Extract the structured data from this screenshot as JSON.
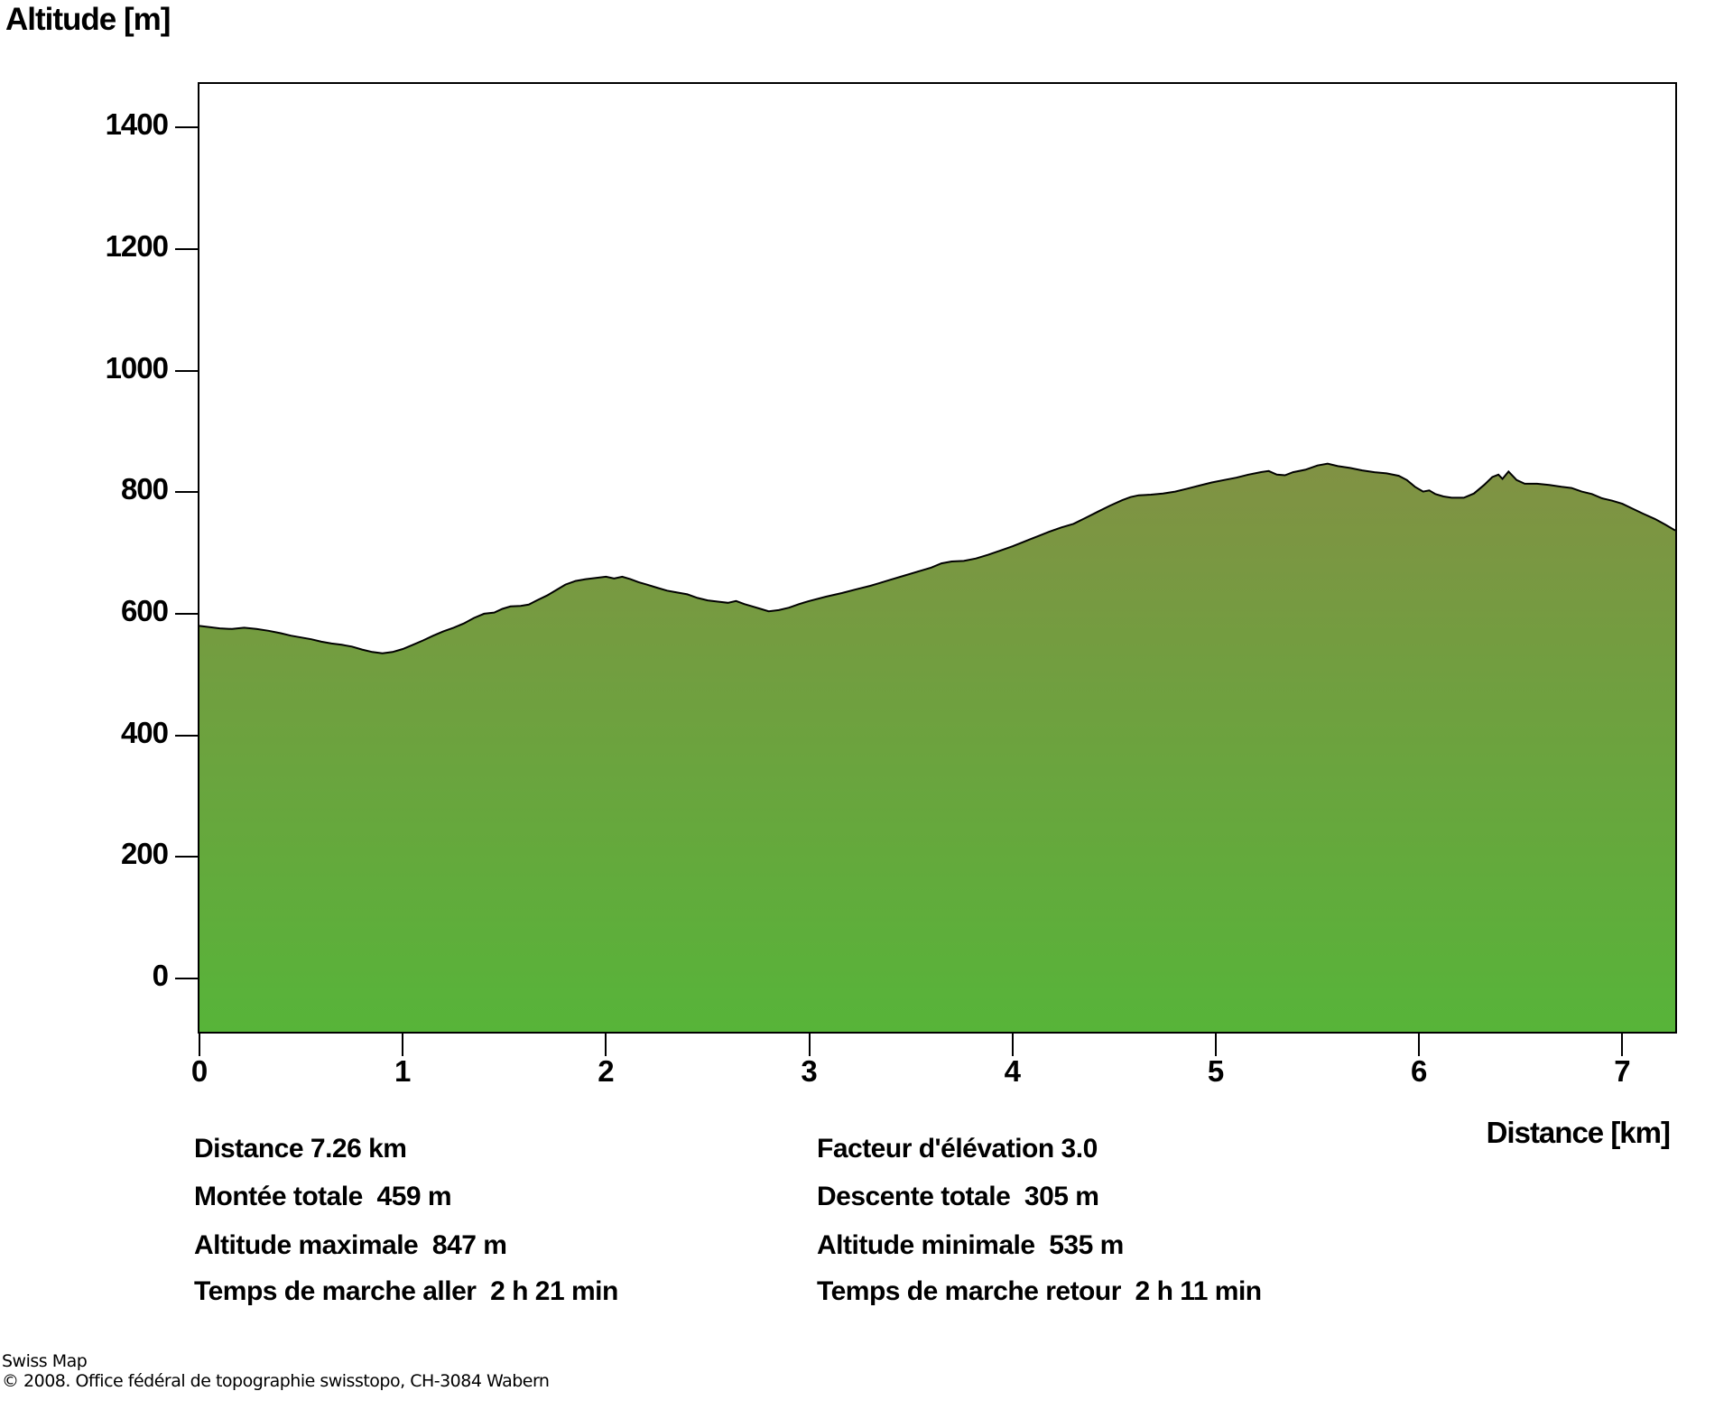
{
  "figure": {
    "title": "Altitude [m]",
    "x_axis_label": "Distance [km]",
    "footer_line1": "Swiss Map",
    "footer_line2": "© 2008. Office fédéral de topographie swisstopo, CH-3084 Wabern"
  },
  "stats": {
    "rows": [
      {
        "left": "Distance 7.26 km",
        "right": "Facteur d'élévation 3.0"
      },
      {
        "left": "Montée totale  459 m",
        "right": "Descente totale  305 m"
      },
      {
        "left": "Altitude maximale  847 m",
        "right": "Altitude minimale  535 m"
      },
      {
        "left": "Temps de marche aller  2 h 21 min",
        "right": "Temps de marche retour  2 h 11 min"
      }
    ]
  },
  "chart_data": {
    "type": "area",
    "title": "Altitude [m]",
    "xlabel": "Distance [km]",
    "ylabel": "Altitude [m]",
    "x_ticks": [
      0,
      1,
      2,
      3,
      4,
      5,
      6,
      7
    ],
    "y_ticks": [
      0,
      200,
      400,
      600,
      800,
      1000,
      1200,
      1400
    ],
    "xlim": [
      0,
      7.26
    ],
    "ylim_drawn": [
      -88,
      1472
    ],
    "grid": "off",
    "legend": "none",
    "start_altitude_m": 580,
    "end_altitude_m": 737,
    "min_altitude_m": 535,
    "max_altitude_m": 847,
    "line_color": "#000000",
    "fill_gradient": {
      "top": "#8a8a46",
      "bottom": "#57b439"
    },
    "points": [
      [
        0.0,
        580
      ],
      [
        0.05,
        578
      ],
      [
        0.1,
        576
      ],
      [
        0.16,
        575
      ],
      [
        0.22,
        577
      ],
      [
        0.28,
        575
      ],
      [
        0.34,
        572
      ],
      [
        0.4,
        568
      ],
      [
        0.45,
        564
      ],
      [
        0.5,
        561
      ],
      [
        0.55,
        558
      ],
      [
        0.6,
        554
      ],
      [
        0.65,
        551
      ],
      [
        0.7,
        549
      ],
      [
        0.75,
        546
      ],
      [
        0.8,
        541
      ],
      [
        0.85,
        537
      ],
      [
        0.9,
        535
      ],
      [
        0.95,
        537
      ],
      [
        1.0,
        542
      ],
      [
        1.05,
        549
      ],
      [
        1.1,
        556
      ],
      [
        1.15,
        564
      ],
      [
        1.2,
        571
      ],
      [
        1.25,
        577
      ],
      [
        1.3,
        584
      ],
      [
        1.35,
        593
      ],
      [
        1.4,
        600
      ],
      [
        1.45,
        602
      ],
      [
        1.49,
        608
      ],
      [
        1.53,
        612
      ],
      [
        1.58,
        613
      ],
      [
        1.62,
        615
      ],
      [
        1.66,
        622
      ],
      [
        1.71,
        630
      ],
      [
        1.76,
        640
      ],
      [
        1.8,
        648
      ],
      [
        1.85,
        654
      ],
      [
        1.9,
        657
      ],
      [
        1.95,
        659
      ],
      [
        2.0,
        661
      ],
      [
        2.04,
        658
      ],
      [
        2.08,
        661
      ],
      [
        2.12,
        657
      ],
      [
        2.16,
        652
      ],
      [
        2.2,
        648
      ],
      [
        2.25,
        643
      ],
      [
        2.3,
        638
      ],
      [
        2.35,
        635
      ],
      [
        2.4,
        632
      ],
      [
        2.45,
        626
      ],
      [
        2.5,
        622
      ],
      [
        2.55,
        620
      ],
      [
        2.6,
        618
      ],
      [
        2.64,
        621
      ],
      [
        2.68,
        616
      ],
      [
        2.72,
        612
      ],
      [
        2.76,
        608
      ],
      [
        2.8,
        604
      ],
      [
        2.85,
        606
      ],
      [
        2.9,
        610
      ],
      [
        2.95,
        616
      ],
      [
        3.0,
        621
      ],
      [
        3.08,
        628
      ],
      [
        3.16,
        634
      ],
      [
        3.24,
        641
      ],
      [
        3.3,
        646
      ],
      [
        3.34,
        650
      ],
      [
        3.4,
        656
      ],
      [
        3.47,
        663
      ],
      [
        3.54,
        670
      ],
      [
        3.6,
        676
      ],
      [
        3.65,
        683
      ],
      [
        3.7,
        686
      ],
      [
        3.76,
        687
      ],
      [
        3.82,
        691
      ],
      [
        3.88,
        697
      ],
      [
        3.94,
        704
      ],
      [
        4.0,
        711
      ],
      [
        4.06,
        719
      ],
      [
        4.12,
        727
      ],
      [
        4.18,
        735
      ],
      [
        4.24,
        742
      ],
      [
        4.3,
        748
      ],
      [
        4.36,
        758
      ],
      [
        4.42,
        768
      ],
      [
        4.48,
        778
      ],
      [
        4.54,
        787
      ],
      [
        4.58,
        792
      ],
      [
        4.62,
        795
      ],
      [
        4.68,
        796
      ],
      [
        4.74,
        798
      ],
      [
        4.8,
        801
      ],
      [
        4.86,
        806
      ],
      [
        4.92,
        811
      ],
      [
        4.98,
        816
      ],
      [
        5.04,
        820
      ],
      [
        5.1,
        824
      ],
      [
        5.16,
        829
      ],
      [
        5.22,
        833
      ],
      [
        5.26,
        835
      ],
      [
        5.3,
        829
      ],
      [
        5.34,
        828
      ],
      [
        5.38,
        833
      ],
      [
        5.44,
        837
      ],
      [
        5.5,
        844
      ],
      [
        5.55,
        847
      ],
      [
        5.6,
        843
      ],
      [
        5.66,
        840
      ],
      [
        5.72,
        836
      ],
      [
        5.78,
        833
      ],
      [
        5.84,
        831
      ],
      [
        5.9,
        827
      ],
      [
        5.94,
        820
      ],
      [
        5.98,
        809
      ],
      [
        6.02,
        801
      ],
      [
        6.05,
        803
      ],
      [
        6.08,
        797
      ],
      [
        6.12,
        793
      ],
      [
        6.16,
        791
      ],
      [
        6.22,
        791
      ],
      [
        6.27,
        798
      ],
      [
        6.32,
        812
      ],
      [
        6.36,
        825
      ],
      [
        6.39,
        829
      ],
      [
        6.41,
        822
      ],
      [
        6.44,
        834
      ],
      [
        6.48,
        820
      ],
      [
        6.52,
        814
      ],
      [
        6.58,
        814
      ],
      [
        6.64,
        812
      ],
      [
        6.7,
        809
      ],
      [
        6.75,
        807
      ],
      [
        6.8,
        801
      ],
      [
        6.85,
        797
      ],
      [
        6.9,
        790
      ],
      [
        6.95,
        786
      ],
      [
        7.0,
        781
      ],
      [
        7.05,
        773
      ],
      [
        7.1,
        765
      ],
      [
        7.16,
        756
      ],
      [
        7.21,
        747
      ],
      [
        7.26,
        737
      ]
    ]
  }
}
